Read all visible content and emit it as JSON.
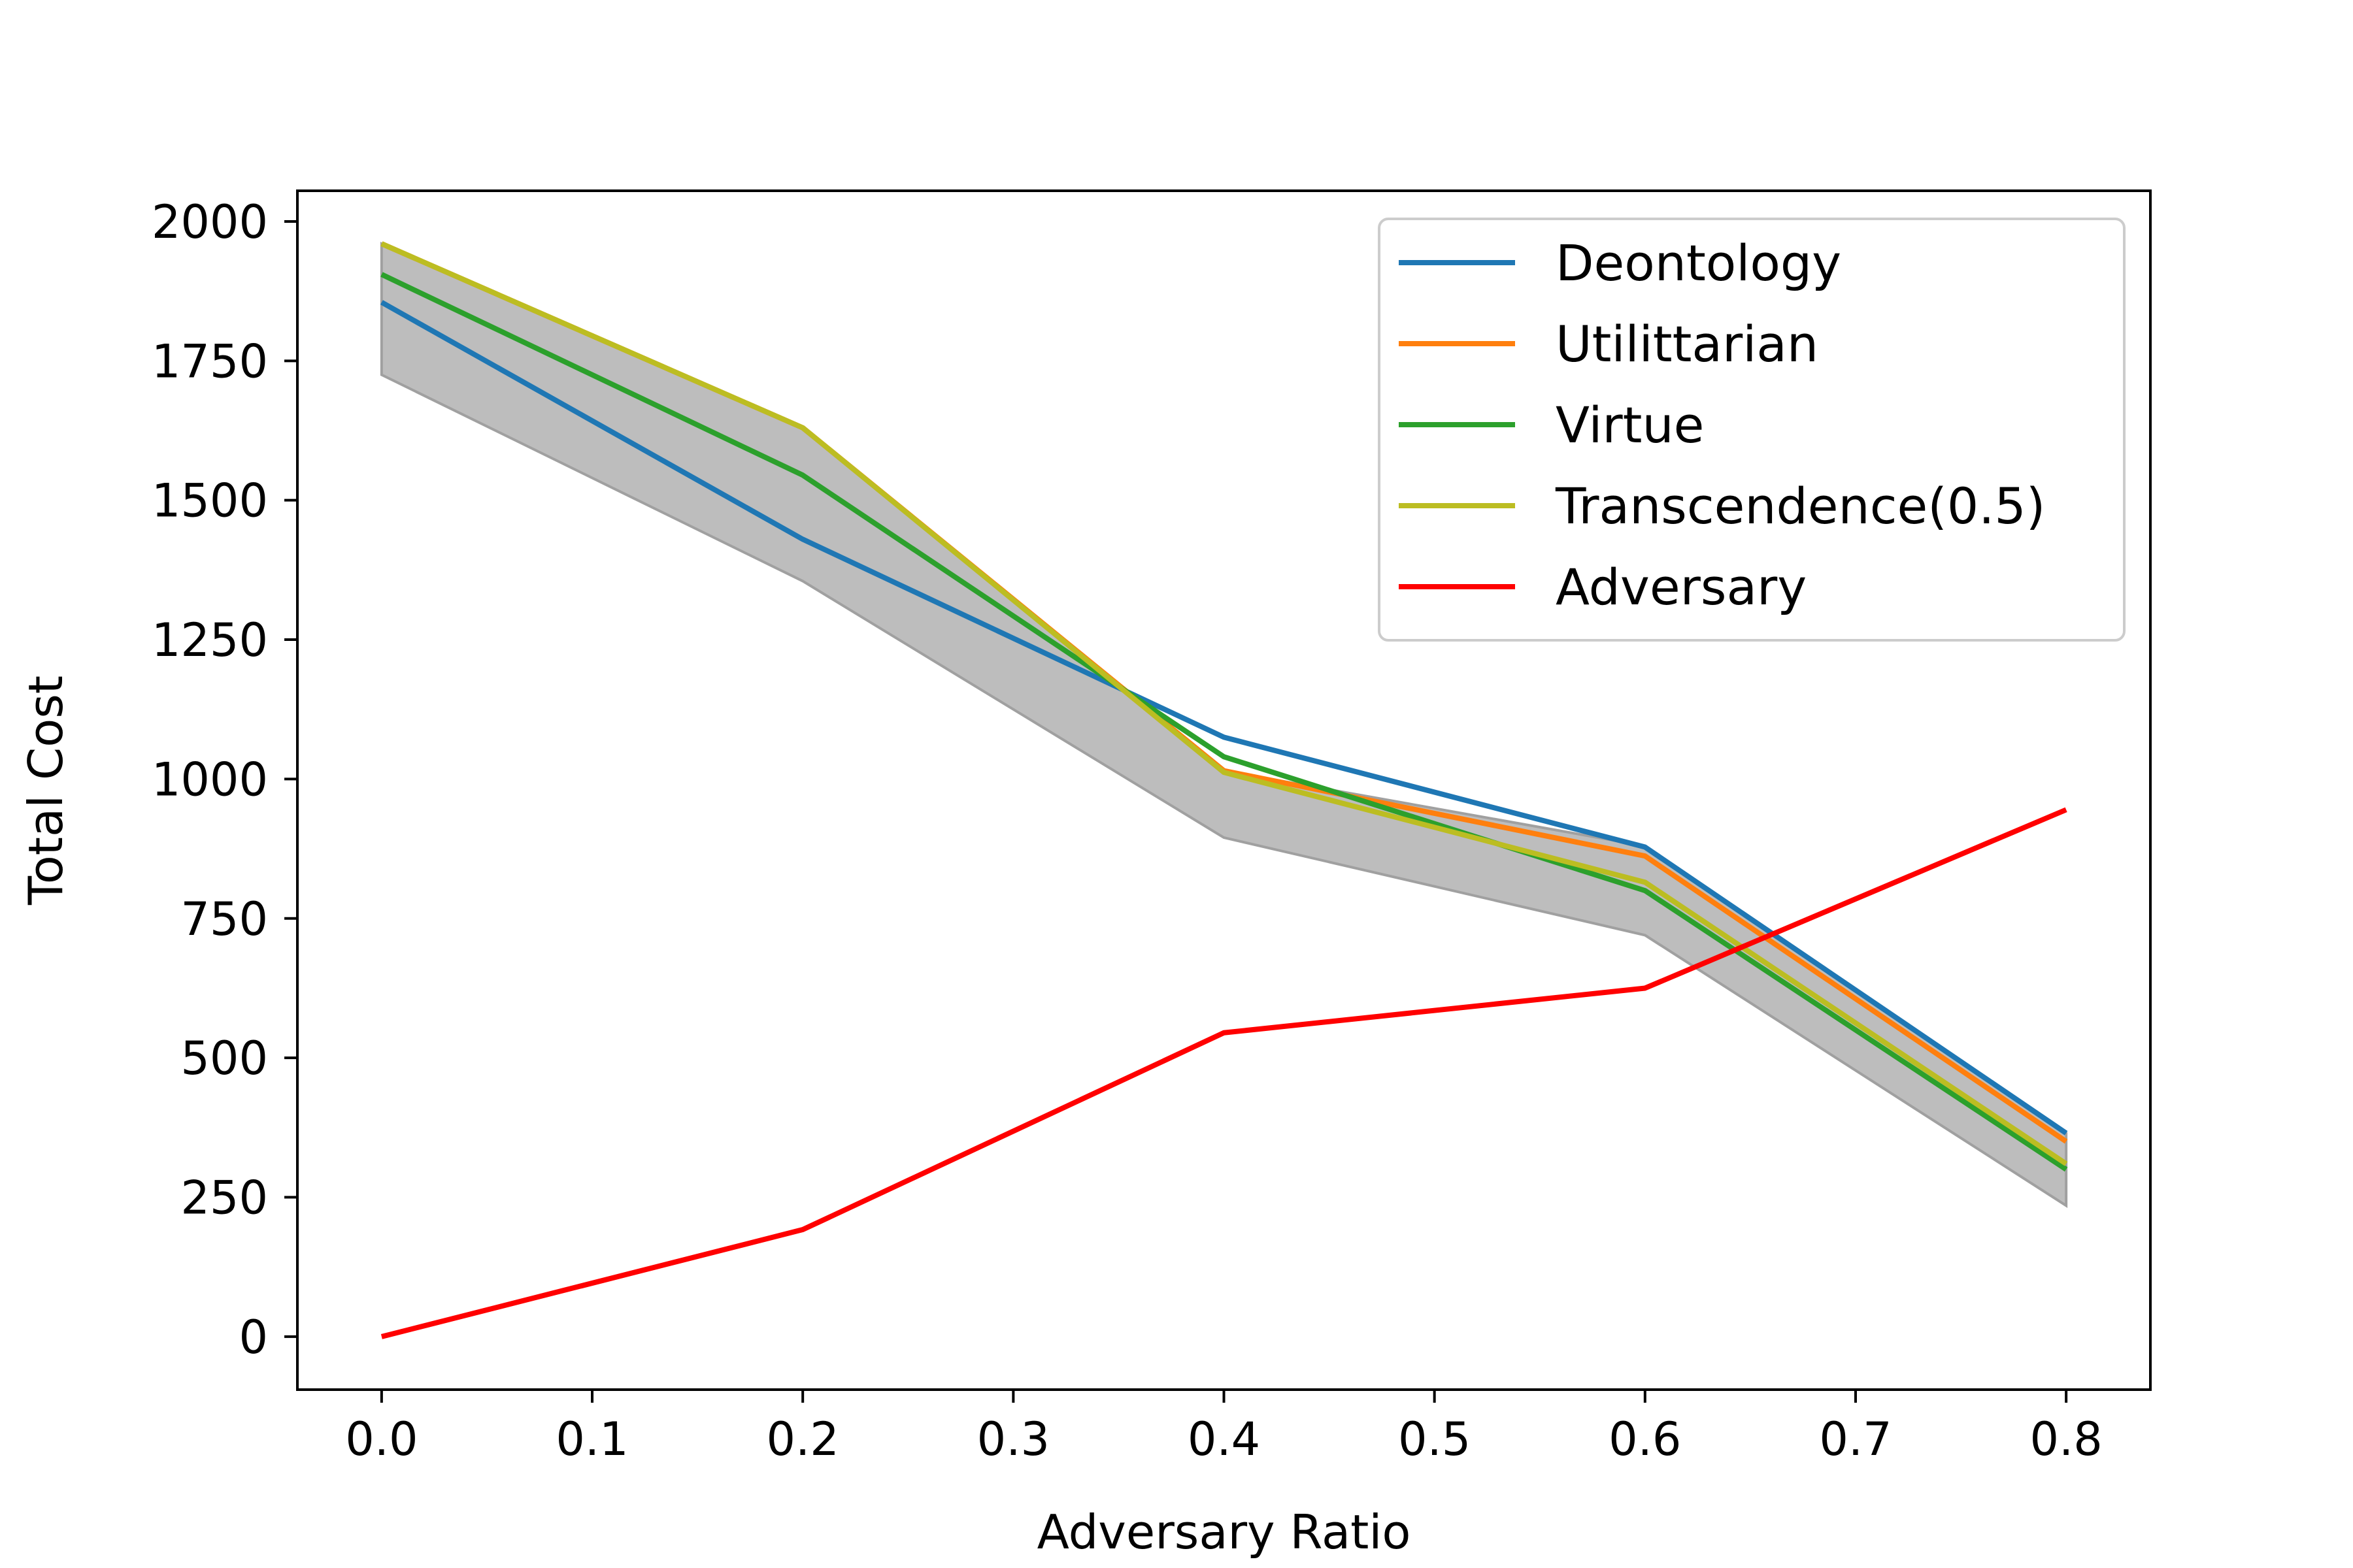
{
  "chart_data": {
    "type": "line",
    "xlabel": "Adversary Ratio",
    "ylabel": "Total Cost",
    "xlim": [
      -0.04,
      0.84
    ],
    "ylim": [
      -95,
      2055
    ],
    "x_ticks": [
      "0.0",
      "0.1",
      "0.2",
      "0.3",
      "0.4",
      "0.5",
      "0.6",
      "0.7",
      "0.8"
    ],
    "x_tick_values": [
      0.0,
      0.1,
      0.2,
      0.3,
      0.4,
      0.5,
      0.6,
      0.7,
      0.8
    ],
    "y_ticks": [
      "0",
      "250",
      "500",
      "750",
      "1000",
      "1250",
      "1500",
      "1750",
      "2000"
    ],
    "y_tick_values": [
      0,
      250,
      500,
      750,
      1000,
      1250,
      1500,
      1750,
      2000
    ],
    "grid": false,
    "legend_position": "top-right",
    "x": [
      0.0,
      0.2,
      0.4,
      0.6,
      0.8
    ],
    "band": {
      "color": "#bdbdbd",
      "lower": [
        1725,
        1355,
        895,
        720,
        235
      ],
      "upper": [
        1960,
        1630,
        1015,
        880,
        365
      ]
    },
    "series": [
      {
        "name": "Deontology",
        "color": "#1f77b4",
        "values": [
          1855,
          1430,
          1075,
          878,
          365
        ]
      },
      {
        "name": "Utilittarian",
        "color": "#ff7f0e",
        "values": [
          1960,
          1630,
          1015,
          862,
          350
        ]
      },
      {
        "name": "Virtue",
        "color": "#2ca02c",
        "values": [
          1905,
          1545,
          1040,
          800,
          300
        ]
      },
      {
        "name": "Transcendence(0.5)",
        "color": "#bcbd22",
        "values": [
          1960,
          1630,
          1012,
          815,
          310
        ]
      },
      {
        "name": "Adversary",
        "color": "#ff0000",
        "values": [
          0,
          192,
          545,
          625,
          945
        ]
      }
    ]
  }
}
